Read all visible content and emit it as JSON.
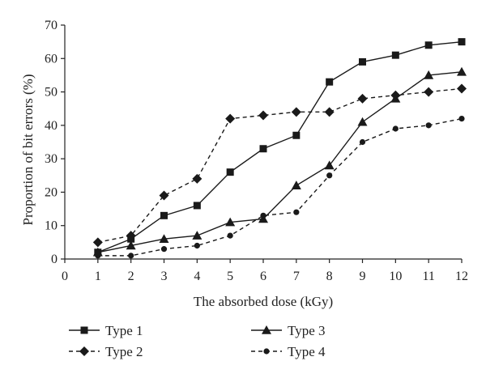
{
  "chart_data": {
    "type": "line",
    "xlabel": "The absorbed dose (kGy)",
    "ylabel": "Proportion of bit errors (%)",
    "xlim": [
      0,
      12
    ],
    "ylim": [
      0,
      70
    ],
    "x_ticks": [
      "0",
      "1",
      "2",
      "3",
      "4",
      "5",
      "6",
      "7",
      "8",
      "9",
      "10",
      "11",
      "12"
    ],
    "y_ticks": [
      "0",
      "10",
      "20",
      "30",
      "40",
      "50",
      "60",
      "70"
    ],
    "grid": false,
    "legend_position": "bottom",
    "x": [
      1,
      2,
      3,
      4,
      5,
      6,
      7,
      8,
      9,
      10,
      11,
      12
    ],
    "series": [
      {
        "name": "Type 1",
        "marker": "square",
        "dash": "solid",
        "values": [
          2,
          6,
          13,
          16,
          26,
          33,
          37,
          53,
          59,
          61,
          64,
          65
        ]
      },
      {
        "name": "Type 2",
        "marker": "diamond",
        "dash": "dashed",
        "values": [
          5,
          7,
          19,
          24,
          42,
          43,
          44,
          44,
          48,
          49,
          50,
          51
        ]
      },
      {
        "name": "Type 3",
        "marker": "triangle",
        "dash": "solid",
        "values": [
          2,
          4,
          6,
          7,
          11,
          12,
          22,
          28,
          41,
          48,
          55,
          56
        ]
      },
      {
        "name": "Type 4",
        "marker": "circle",
        "dash": "dashed",
        "values": [
          1,
          1,
          3,
          4,
          7,
          13,
          14,
          25,
          35,
          39,
          40,
          42
        ]
      }
    ]
  }
}
